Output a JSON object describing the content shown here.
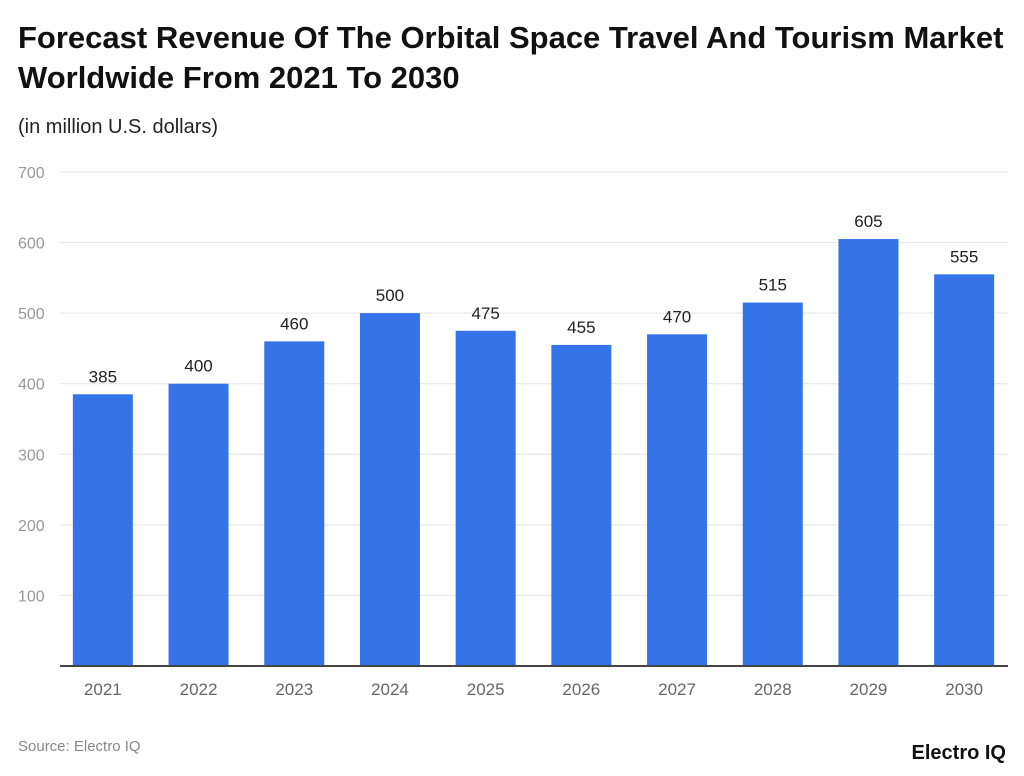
{
  "chart_data": {
    "type": "bar",
    "title": "Forecast Revenue Of The Orbital Space Travel And Tourism Market Worldwide From 2021 To 2030",
    "subtitle": "(in million U.S. dollars)",
    "categories": [
      "2021",
      "2022",
      "2023",
      "2024",
      "2025",
      "2026",
      "2027",
      "2028",
      "2029",
      "2030"
    ],
    "values": [
      385,
      400,
      460,
      500,
      475,
      455,
      470,
      515,
      605,
      555
    ],
    "xlabel": "",
    "ylabel": "",
    "ylim": [
      0,
      700
    ],
    "yticks": [
      100,
      200,
      300,
      400,
      500,
      600,
      700
    ],
    "grid": true,
    "data_labels": true,
    "bar_color": "#3474e8"
  },
  "footer": {
    "source": "Source: Electro IQ",
    "logo": "Electro IQ"
  }
}
